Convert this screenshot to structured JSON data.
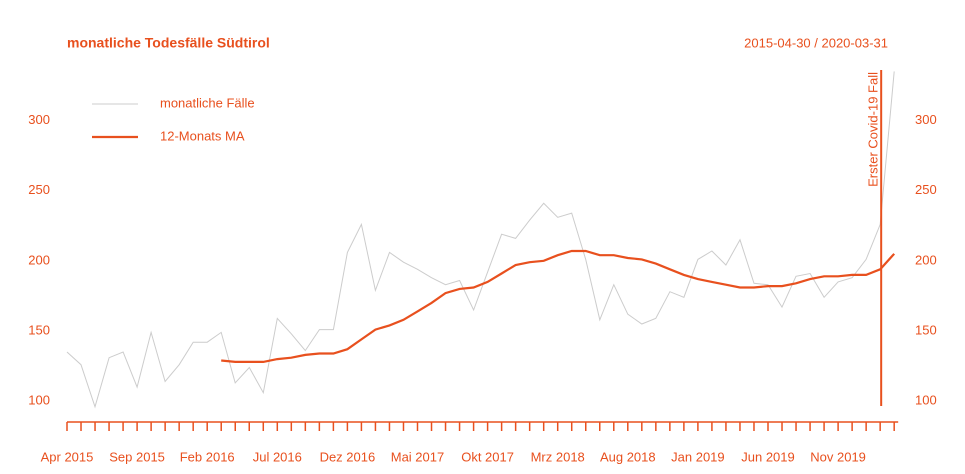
{
  "chart_data": {
    "type": "line",
    "title": "monatliche Todesfälle Südtirol",
    "subtitle": "2015-04-30 / 2020-03-31",
    "annotation": "Erster Covid-19 Fall",
    "categories": [
      "Apr 2015",
      null,
      null,
      null,
      null,
      "Sep 2015",
      null,
      null,
      null,
      null,
      "Feb 2016",
      null,
      null,
      null,
      null,
      "Jul 2016",
      null,
      null,
      null,
      null,
      "Dez 2016",
      null,
      null,
      null,
      null,
      "Mai 2017",
      null,
      null,
      null,
      null,
      "Okt 2017",
      null,
      null,
      null,
      null,
      "Mrz 2018",
      null,
      null,
      null,
      null,
      "Aug 2018",
      null,
      null,
      null,
      null,
      "Jan 2019",
      null,
      null,
      null,
      null,
      "Jun 2019",
      null,
      null,
      null,
      null,
      "Nov 2019",
      null,
      null,
      null,
      null
    ],
    "series": [
      {
        "name": "monatliche Fälle",
        "color": "#cccccc",
        "values": [
          135,
          126,
          96,
          131,
          135,
          110,
          149,
          114,
          126,
          142,
          142,
          149,
          113,
          124,
          106,
          159,
          148,
          136,
          151,
          151,
          206,
          226,
          179,
          206,
          199,
          194,
          188,
          183,
          186,
          165,
          192,
          219,
          216,
          229,
          241,
          231,
          234,
          201,
          158,
          183,
          162,
          155,
          159,
          178,
          174,
          201,
          207,
          197,
          215,
          184,
          183,
          167,
          189,
          191,
          174,
          185,
          188,
          201,
          226,
          335
        ]
      },
      {
        "name": "12-Monats MA",
        "color": "#e8501e",
        "values": [
          null,
          null,
          null,
          null,
          null,
          null,
          null,
          null,
          null,
          null,
          null,
          129,
          128,
          128,
          128,
          130,
          131,
          133,
          134,
          134,
          137,
          144,
          151,
          154,
          158,
          164,
          170,
          177,
          180,
          181,
          185,
          191,
          197,
          199,
          200,
          204,
          207,
          207,
          204,
          204,
          202,
          201,
          198,
          194,
          190,
          187,
          185,
          183,
          181,
          181,
          182,
          182,
          184,
          187,
          189,
          189,
          190,
          190,
          194,
          205
        ]
      }
    ],
    "ylim": [
      88,
      336
    ],
    "yticks": [
      100,
      150,
      200,
      250,
      300
    ],
    "annotation_color": "#e8501e"
  }
}
